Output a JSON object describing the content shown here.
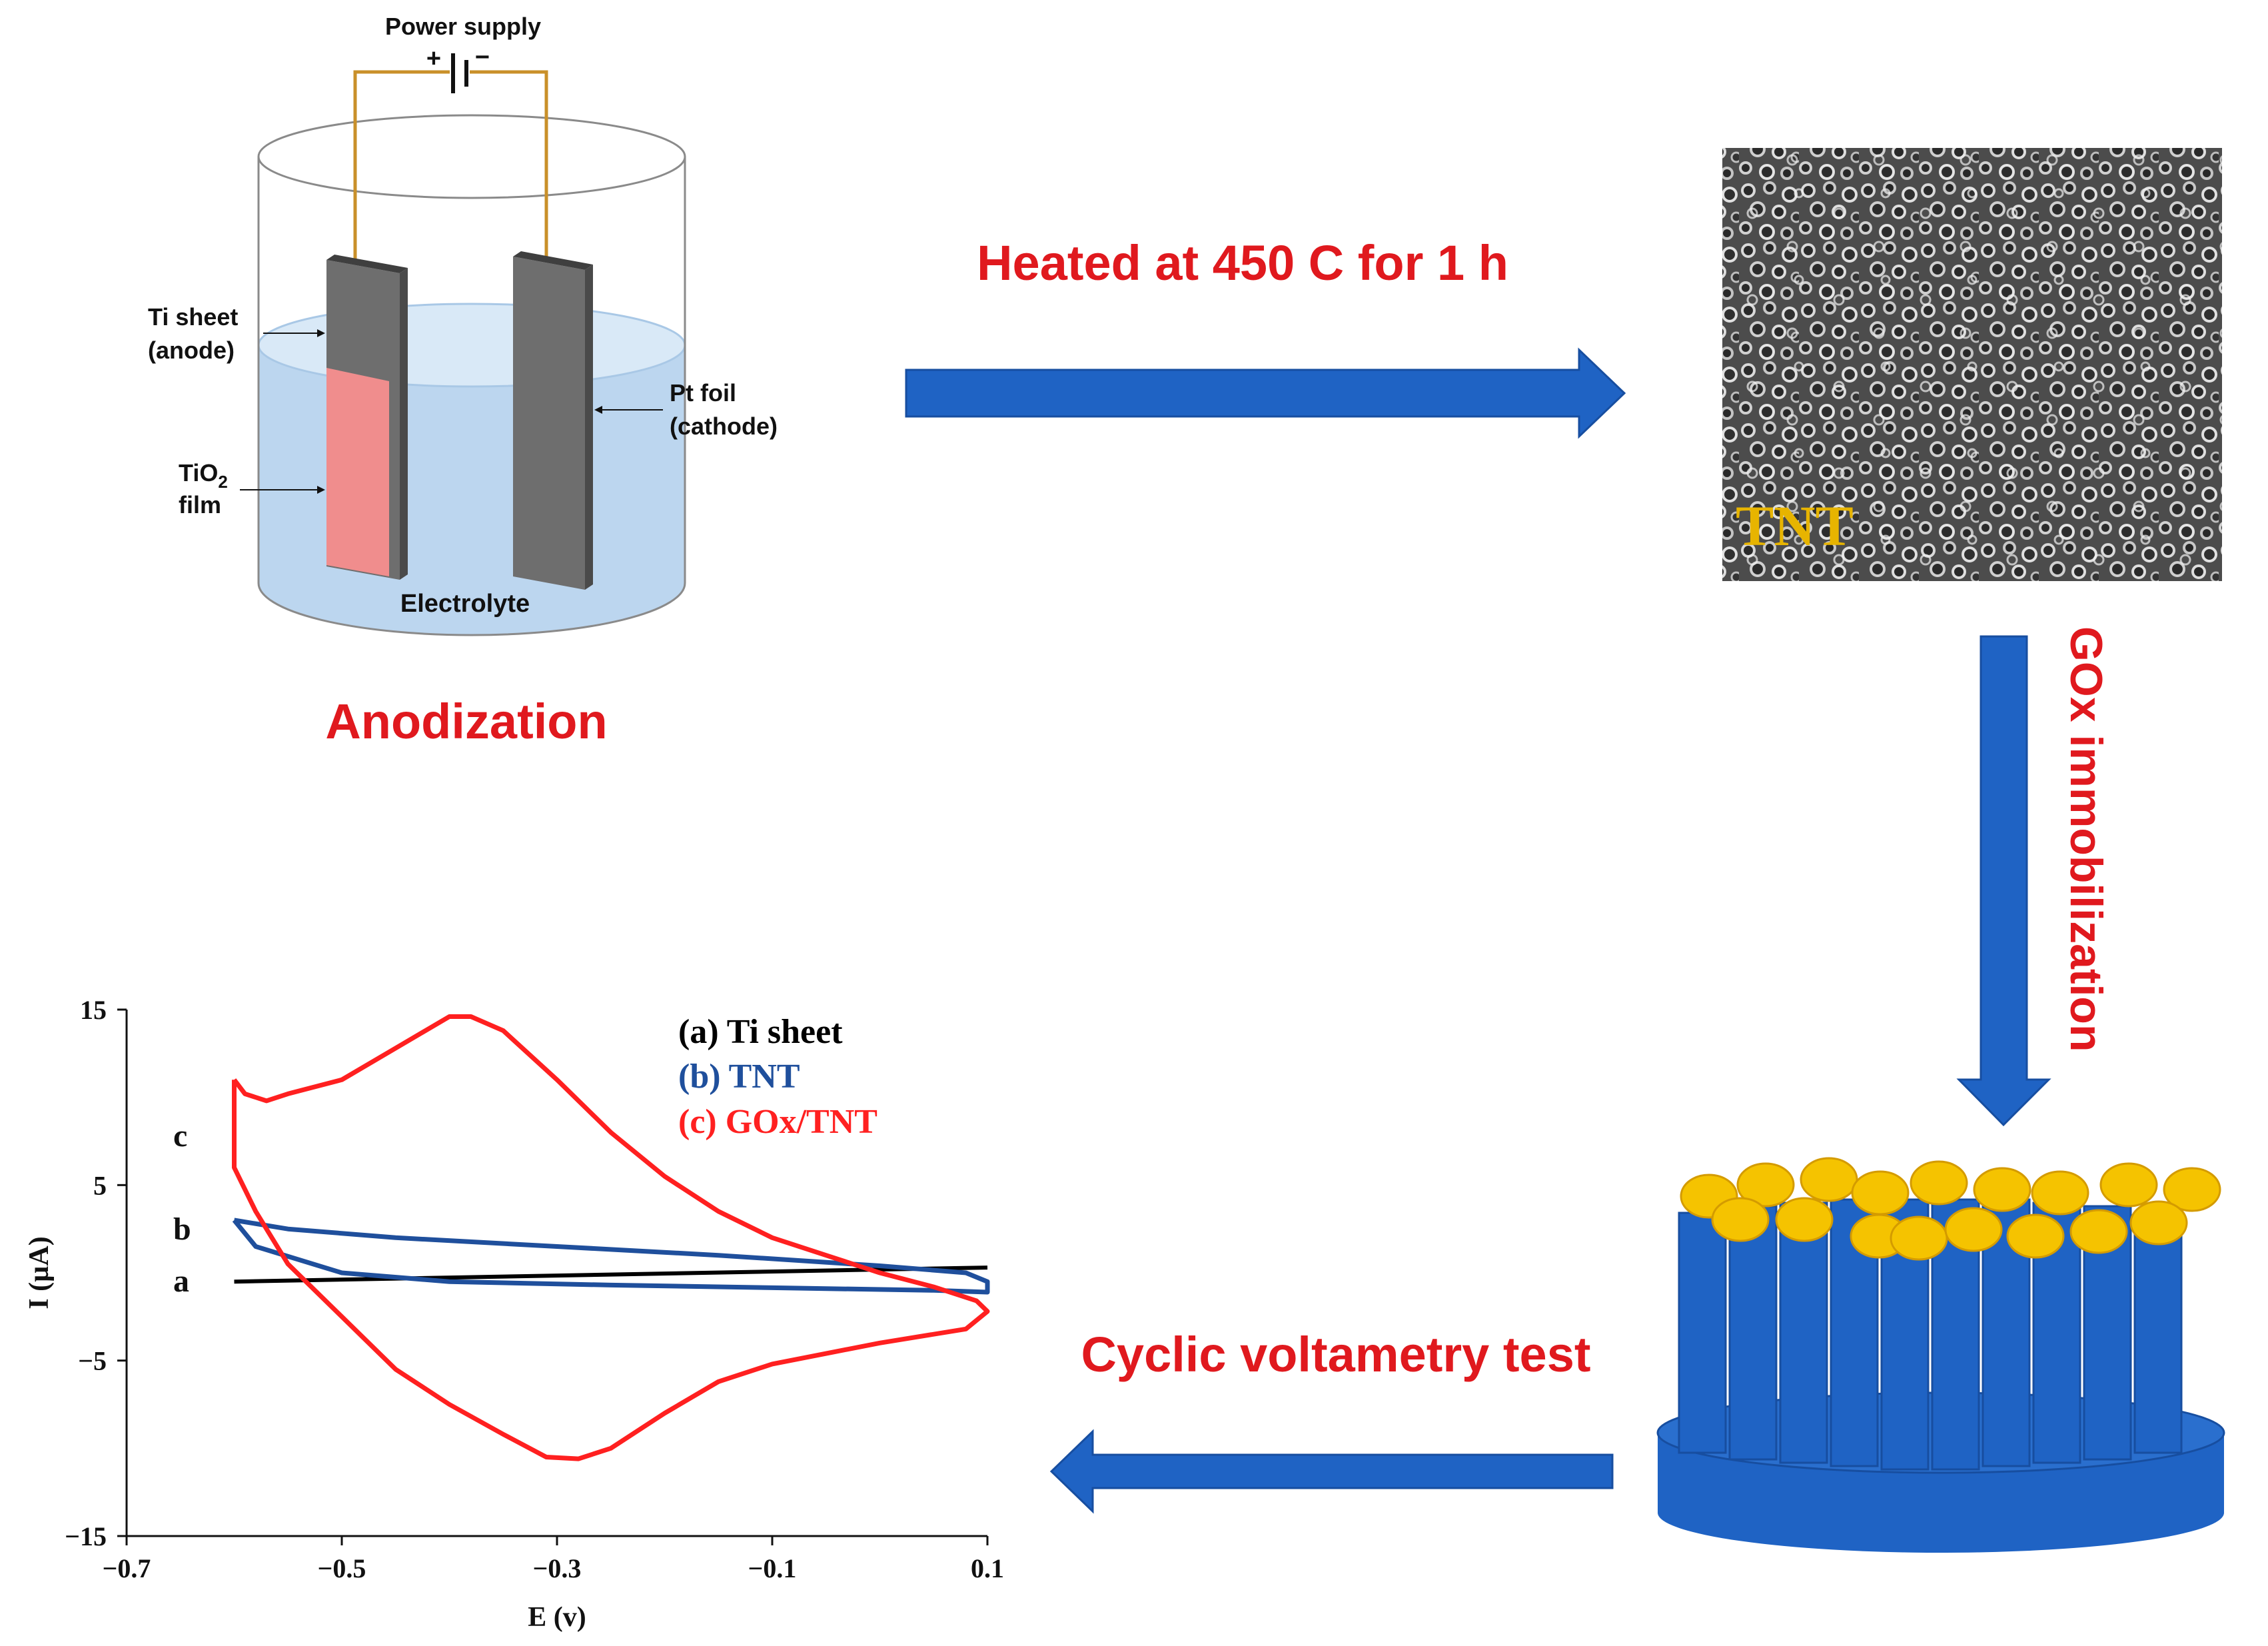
{
  "colors": {
    "step_label": "#e0191e",
    "arrow_fill": "#1f63c4",
    "arrow_stroke": "#174ea0",
    "electrolyte": "#b7d3ee",
    "tio2_film": "#f08d8d",
    "electrode": "#6e6e6e",
    "wire": "#c9902a",
    "nanotube": "#1f63c4",
    "gox": "#f5c300",
    "tnt_label": "#e7b400",
    "sem_background": "#4e4e4e",
    "curve_a": "#000000",
    "curve_b": "#1f4f9c",
    "curve_c": "#ff2020"
  },
  "anodization": {
    "power_supply_label": "Power supply",
    "plus_sign": "+",
    "minus_sign": "−",
    "ti_sheet_label_line1": "Ti sheet",
    "ti_sheet_label_line2": "(anode)",
    "tio2_label_line1": "TiO",
    "tio2_label_subscript": "2",
    "tio2_label_line2": "film",
    "pt_foil_label_line1": "Pt foil",
    "pt_foil_label_line2": "(cathode)",
    "electrolyte_label": "Electrolyte",
    "step_label": "Anodization"
  },
  "step_heating": {
    "label": "Heated at 450  C for 1 h"
  },
  "sem_image": {
    "label": "TNT"
  },
  "step_gox": {
    "label": "GOx immobilization"
  },
  "step_cv": {
    "label": "Cyclic voltametry test"
  },
  "chart_data": {
    "type": "line",
    "title": "",
    "xlabel": "E (v)",
    "ylabel": "I (µA)",
    "xlim": [
      -0.7,
      0.1
    ],
    "ylim": [
      -15,
      15
    ],
    "xticks": [
      "−0.7",
      "−0.5",
      "−0.3",
      "−0.1",
      "0.1"
    ],
    "yticks": [
      "15",
      "5",
      "−5",
      "−15"
    ],
    "grid": false,
    "legend": [
      "(a) Ti sheet",
      "(b) TNT",
      "(c)  GOx/TNT"
    ],
    "curve_letters": [
      "a",
      "b",
      "c"
    ],
    "series": [
      {
        "name": "(a) Ti sheet",
        "points": [
          [
            -0.6,
            -0.5
          ],
          [
            0.1,
            0.3
          ]
        ]
      },
      {
        "name": "(b) TNT",
        "points": [
          [
            -0.6,
            3.0
          ],
          [
            -0.55,
            2.5
          ],
          [
            -0.45,
            2.0
          ],
          [
            -0.3,
            1.5
          ],
          [
            -0.15,
            1.0
          ],
          [
            0.0,
            0.4
          ],
          [
            0.08,
            0.0
          ],
          [
            0.1,
            -0.5
          ],
          [
            0.1,
            -1.1
          ],
          [
            0.05,
            -1.0
          ],
          [
            -0.1,
            -0.85
          ],
          [
            -0.25,
            -0.7
          ],
          [
            -0.4,
            -0.5
          ],
          [
            -0.5,
            0.0
          ],
          [
            -0.58,
            1.5
          ],
          [
            -0.6,
            3.0
          ]
        ]
      },
      {
        "name": "(c)  GOx/TNT",
        "points": [
          [
            -0.6,
            11.0
          ],
          [
            -0.59,
            10.2
          ],
          [
            -0.57,
            9.8
          ],
          [
            -0.55,
            10.2
          ],
          [
            -0.5,
            11.0
          ],
          [
            -0.45,
            12.8
          ],
          [
            -0.4,
            14.6
          ],
          [
            -0.38,
            14.6
          ],
          [
            -0.35,
            13.8
          ],
          [
            -0.3,
            11.0
          ],
          [
            -0.25,
            8.0
          ],
          [
            -0.2,
            5.5
          ],
          [
            -0.15,
            3.5
          ],
          [
            -0.1,
            2.0
          ],
          [
            -0.05,
            1.0
          ],
          [
            0.0,
            0.0
          ],
          [
            0.05,
            -0.8
          ],
          [
            0.09,
            -1.6
          ],
          [
            0.1,
            -2.2
          ],
          [
            0.08,
            -3.2
          ],
          [
            0.0,
            -4.0
          ],
          [
            -0.1,
            -5.2
          ],
          [
            -0.15,
            -6.2
          ],
          [
            -0.2,
            -8.0
          ],
          [
            -0.25,
            -10.0
          ],
          [
            -0.28,
            -10.6
          ],
          [
            -0.31,
            -10.5
          ],
          [
            -0.35,
            -9.2
          ],
          [
            -0.4,
            -7.5
          ],
          [
            -0.45,
            -5.5
          ],
          [
            -0.5,
            -2.5
          ],
          [
            -0.55,
            0.5
          ],
          [
            -0.58,
            3.5
          ],
          [
            -0.6,
            6.0
          ],
          [
            -0.6,
            11.0
          ]
        ]
      }
    ]
  }
}
